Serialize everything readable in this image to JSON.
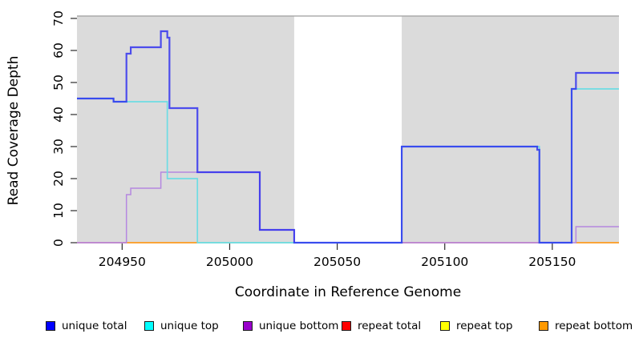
{
  "figure": {
    "ylabel": "Read Coverage Depth",
    "xlabel": "Coordinate in Reference Genome"
  },
  "chart_data": {
    "type": "line",
    "subtype": "step-coverage",
    "title": "",
    "xlabel": "Coordinate in Reference Genome",
    "ylabel": "Read Coverage Depth",
    "xlim": [
      204929,
      205181
    ],
    "ylim": [
      0,
      70
    ],
    "x_ticks": [
      204950,
      205000,
      205050,
      205100,
      205150
    ],
    "y_ticks": [
      0,
      10,
      20,
      30,
      40,
      50,
      60,
      70
    ],
    "grid": false,
    "background": {
      "plot_bg": "#dbdbdb",
      "top_border_color": "#9e9e9e",
      "gap_region": {
        "start": 205030,
        "end": 205080,
        "color": "#ffffff"
      }
    },
    "series": [
      {
        "name": "unique total",
        "legend_color": "#0000ff",
        "render_color": "#2828f0",
        "render_opacity": 0.8,
        "width": 2.2,
        "steps": [
          [
            204929,
            45
          ],
          [
            204946,
            44
          ],
          [
            204952,
            59
          ],
          [
            204954,
            61
          ],
          [
            204968,
            66
          ],
          [
            204971,
            64
          ],
          [
            204972,
            42
          ],
          [
            204985,
            22
          ],
          [
            205014,
            4
          ],
          [
            205030,
            0
          ],
          [
            205080,
            30
          ],
          [
            205143,
            29
          ],
          [
            205144,
            0
          ],
          [
            205159,
            48
          ],
          [
            205161,
            53
          ]
        ]
      },
      {
        "name": "unique top",
        "legend_color": "#00ffff",
        "render_color": "#6edce4",
        "render_opacity": 1,
        "width": 1.7,
        "steps": [
          [
            204929,
            45
          ],
          [
            204946,
            44
          ],
          [
            204971,
            20
          ],
          [
            204985,
            0
          ],
          [
            205080,
            30
          ],
          [
            205144,
            0
          ],
          [
            205159,
            48
          ]
        ]
      },
      {
        "name": "unique bottom",
        "legend_color": "#9900cc",
        "render_color": "#b588e0",
        "render_opacity": 1,
        "width": 1.5,
        "steps": [
          [
            204929,
            0
          ],
          [
            204952,
            15
          ],
          [
            204954,
            17
          ],
          [
            204968,
            22
          ],
          [
            205014,
            4
          ],
          [
            205030,
            0
          ],
          [
            205161,
            5
          ]
        ]
      },
      {
        "name": "repeat total",
        "legend_color": "#ff0000",
        "render_color": "#d44d64",
        "render_opacity": 1,
        "width": 1.5,
        "steps": [
          [
            204929,
            0
          ]
        ],
        "visible_segments": [
          [
            204929,
            204952
          ],
          [
            205080,
            205144
          ]
        ]
      },
      {
        "name": "repeat top",
        "legend_color": "#ffff00",
        "render_color": "#90d795",
        "render_opacity": 1,
        "width": 1.5,
        "steps": [
          [
            204929,
            0
          ]
        ],
        "visible_segments": [
          [
            204985,
            205030
          ]
        ],
        "render_note": "appears light green where it overlaps unique top at depth 0"
      },
      {
        "name": "repeat bottom",
        "legend_color": "#ff9900",
        "render_color": "#ff9d20",
        "render_opacity": 1,
        "width": 1.7,
        "steps": [
          [
            204929,
            0
          ]
        ],
        "visible_segments": [
          [
            204952,
            204985
          ],
          [
            205161,
            205181
          ]
        ]
      }
    ],
    "draw_order": [
      "repeat total",
      "repeat top",
      "repeat bottom",
      "unique bottom",
      "unique top",
      "unique total"
    ],
    "legend_position": "bottom"
  },
  "legend": {
    "items": [
      {
        "label": "unique total",
        "color": "#0000ff"
      },
      {
        "label": "unique top",
        "color": "#00ffff"
      },
      {
        "label": "unique bottom",
        "color": "#9900cc"
      },
      {
        "label": "repeat total",
        "color": "#ff0000"
      },
      {
        "label": "repeat top",
        "color": "#ffff00"
      },
      {
        "label": "repeat bottom",
        "color": "#ff9900"
      }
    ]
  }
}
